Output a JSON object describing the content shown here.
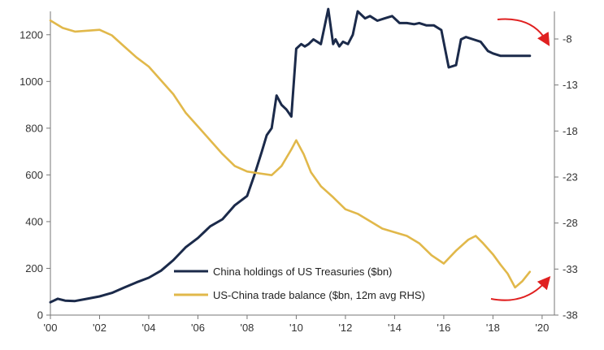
{
  "chart_data": {
    "type": "line",
    "title": "",
    "xlabel": "",
    "ylabel": "",
    "x_ticks": [
      "'00",
      "'02",
      "'04",
      "'06",
      "'08",
      "'10",
      "'12",
      "'14",
      "'16",
      "'18",
      "'20"
    ],
    "y_left_ticks": [
      "0",
      "200",
      "400",
      "600",
      "800",
      "1000",
      "1200"
    ],
    "y_right_ticks": [
      "-8",
      "-13",
      "-18",
      "-23",
      "-28",
      "-33",
      "-38"
    ],
    "xlim": [
      2000,
      2020.5
    ],
    "ylim_left": [
      0,
      1300
    ],
    "ylim_right": [
      -38,
      -5
    ],
    "grid": false,
    "legend_position": "bottom-center",
    "series": [
      {
        "name": "China holdings of US Treasuries ($bn)",
        "axis": "left",
        "color": "#1b2a4a",
        "x": [
          2000.0,
          2000.3,
          2000.6,
          2001.0,
          2001.5,
          2002.0,
          2002.5,
          2003.0,
          2003.5,
          2004.0,
          2004.5,
          2005.0,
          2005.5,
          2006.0,
          2006.5,
          2007.0,
          2007.5,
          2008.0,
          2008.3,
          2008.6,
          2008.8,
          2009.0,
          2009.2,
          2009.4,
          2009.6,
          2009.8,
          2010.0,
          2010.2,
          2010.35,
          2010.5,
          2010.7,
          2011.0,
          2011.3,
          2011.5,
          2011.6,
          2011.75,
          2011.9,
          2012.1,
          2012.3,
          2012.5,
          2012.8,
          2013.0,
          2013.3,
          2013.6,
          2013.9,
          2014.2,
          2014.5,
          2014.8,
          2015.0,
          2015.3,
          2015.6,
          2015.9,
          2016.2,
          2016.5,
          2016.7,
          2016.9,
          2017.2,
          2017.5,
          2017.8,
          2018.0,
          2018.3,
          2018.6,
          2018.9,
          2019.2,
          2019.5
        ],
        "values": [
          55,
          70,
          62,
          60,
          70,
          80,
          95,
          118,
          140,
          160,
          190,
          235,
          290,
          330,
          380,
          410,
          470,
          510,
          600,
          700,
          770,
          800,
          940,
          900,
          880,
          850,
          1140,
          1160,
          1150,
          1160,
          1180,
          1160,
          1310,
          1160,
          1180,
          1150,
          1170,
          1160,
          1200,
          1300,
          1270,
          1280,
          1260,
          1270,
          1280,
          1250,
          1250,
          1245,
          1250,
          1240,
          1240,
          1220,
          1060,
          1070,
          1180,
          1190,
          1180,
          1170,
          1130,
          1120,
          1110,
          1110,
          1110,
          1110,
          1110
        ]
      },
      {
        "name": "US-China trade balance ($bn, 12m avg RHS)",
        "axis": "right",
        "color": "#e1b84a",
        "x": [
          2000.0,
          2000.5,
          2001.0,
          2001.5,
          2002.0,
          2002.5,
          2003.0,
          2003.5,
          2004.0,
          2004.5,
          2005.0,
          2005.5,
          2006.0,
          2006.5,
          2007.0,
          2007.5,
          2008.0,
          2008.5,
          2009.0,
          2009.4,
          2009.8,
          2010.0,
          2010.3,
          2010.6,
          2011.0,
          2011.5,
          2012.0,
          2012.5,
          2013.0,
          2013.5,
          2014.0,
          2014.5,
          2015.0,
          2015.5,
          2016.0,
          2016.5,
          2017.0,
          2017.3,
          2017.6,
          2018.0,
          2018.3,
          2018.6,
          2018.9,
          2019.2,
          2019.5
        ],
        "values": [
          -6.0,
          -6.8,
          -7.2,
          -7.1,
          -7.0,
          -7.6,
          -8.8,
          -10.0,
          -11.0,
          -12.5,
          -14.0,
          -16.0,
          -17.5,
          -19.0,
          -20.5,
          -21.8,
          -22.4,
          -22.6,
          -22.8,
          -21.8,
          -20.0,
          -19.0,
          -20.5,
          -22.5,
          -24.0,
          -25.2,
          -26.5,
          -27.0,
          -27.8,
          -28.6,
          -29.0,
          -29.4,
          -30.2,
          -31.5,
          -32.4,
          -31.0,
          -29.8,
          -29.4,
          -30.2,
          -31.4,
          -32.5,
          -33.5,
          -35.0,
          -34.3,
          -33.3
        ]
      }
    ],
    "annotations": [
      "top-right red curved arrow pointing down",
      "bottom-right red curved arrow pointing up"
    ]
  }
}
